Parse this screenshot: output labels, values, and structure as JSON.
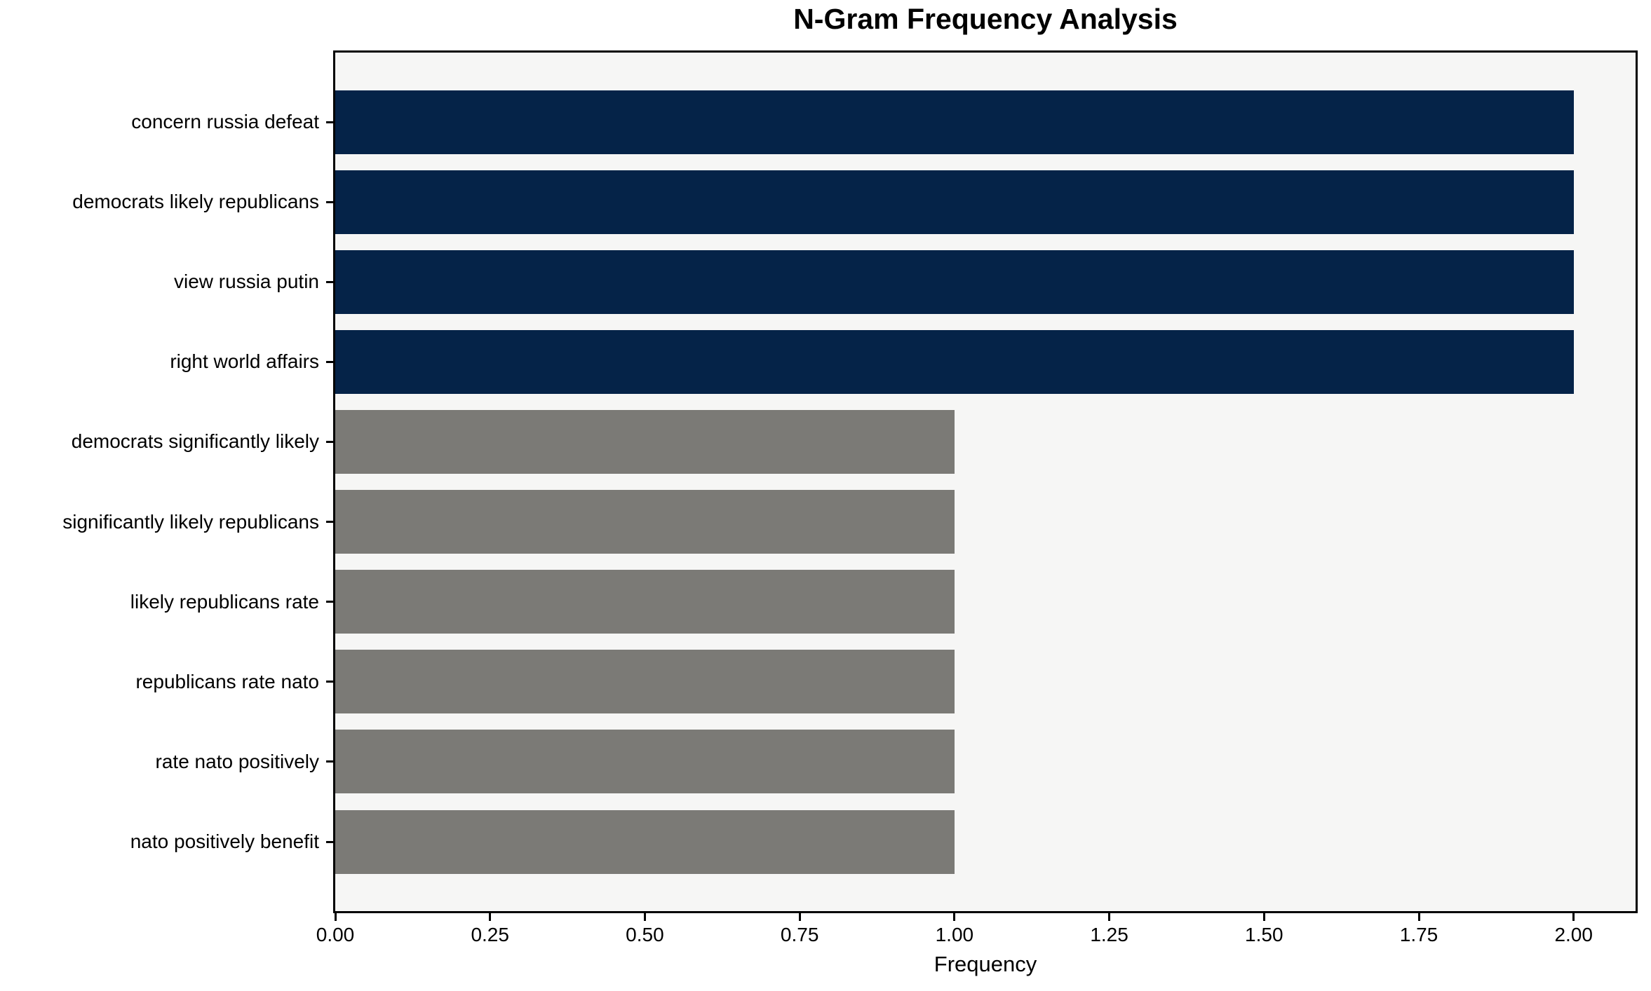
{
  "chart_data": {
    "type": "bar",
    "orientation": "horizontal",
    "title": "N-Gram Frequency Analysis",
    "xlabel": "Frequency",
    "ylabel": "",
    "categories": [
      "concern russia defeat",
      "democrats likely republicans",
      "view russia putin",
      "right world affairs",
      "democrats significantly likely",
      "significantly likely republicans",
      "likely republicans rate",
      "republicans rate nato",
      "rate nato positively",
      "nato positively benefit"
    ],
    "values": [
      2,
      2,
      2,
      2,
      1,
      1,
      1,
      1,
      1,
      1
    ],
    "bar_colors": [
      "#052348",
      "#052348",
      "#052348",
      "#052348",
      "#7b7a76",
      "#7b7a76",
      "#7b7a76",
      "#7b7a76",
      "#7b7a76",
      "#7b7a76"
    ],
    "xlim": [
      0,
      2.1
    ],
    "xticks": [
      "0.00",
      "0.25",
      "0.50",
      "0.75",
      "1.00",
      "1.25",
      "1.50",
      "1.75",
      "2.00"
    ],
    "xtick_values": [
      0,
      0.25,
      0.5,
      0.75,
      1.0,
      1.25,
      1.5,
      1.75,
      2.0
    ],
    "grid": false,
    "legend": "none",
    "colors": {
      "high_frequency_bar": "#052348",
      "low_frequency_bar": "#7b7a76",
      "plot_background": "#f6f6f5",
      "figure_background": "#ffffff",
      "spine": "#000000",
      "text": "#000000"
    }
  }
}
